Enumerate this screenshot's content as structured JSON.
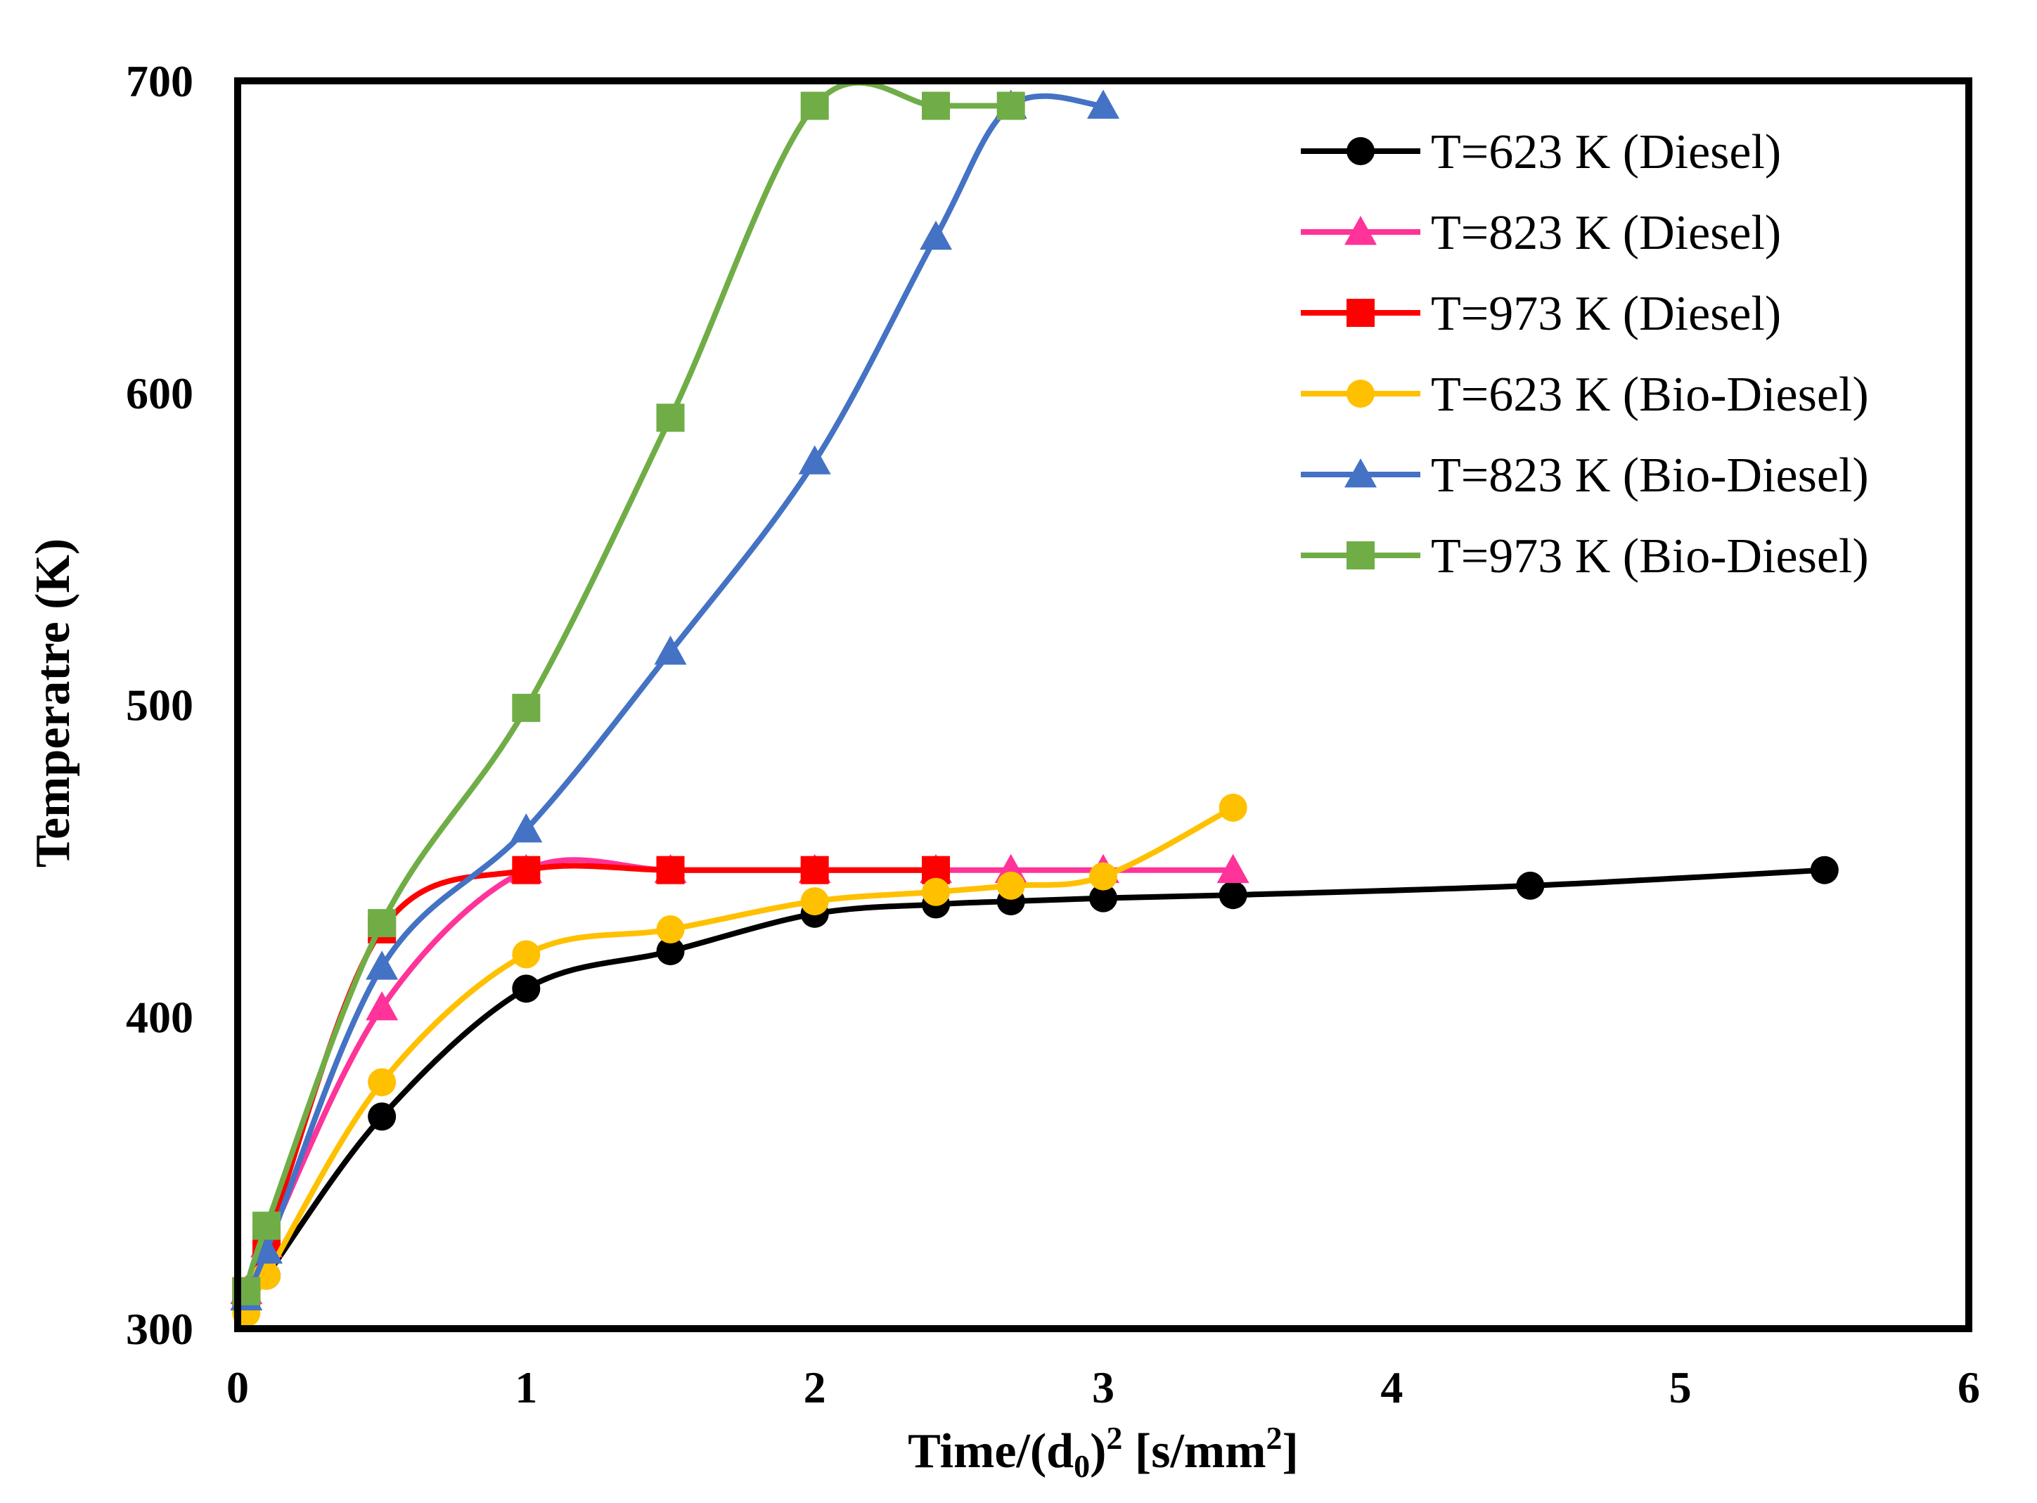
{
  "chart_data": {
    "type": "line",
    "title": "",
    "xlabel_parts": {
      "prefix": "Time/(d",
      "sub": "0",
      "mid": ")",
      "sup1": "2",
      "unit": " [s/mm",
      "sup2": "2",
      "end": "]"
    },
    "xlabel": "Time/(d0)2 [s/mm2]",
    "ylabel": "Temperatre (K)",
    "xlim": [
      0,
      6
    ],
    "ylim": [
      300,
      700
    ],
    "xticks": [
      "0",
      "1",
      "2",
      "3",
      "4",
      "5",
      "6"
    ],
    "yticks": [
      "300",
      "400",
      "500",
      "600",
      "700"
    ],
    "grid": false,
    "legend_position": "top-right",
    "series": [
      {
        "name": "T=623 K (Diesel)",
        "color": "#000000",
        "marker": "circle",
        "x": [
          0.03,
          0.1,
          0.5,
          1.0,
          1.5,
          2.0,
          2.42,
          2.68,
          3.0,
          3.45,
          4.48,
          5.5
        ],
        "y": [
          308,
          317,
          368,
          409,
          421,
          433,
          436,
          437,
          438,
          439,
          442,
          447
        ]
      },
      {
        "name": "T=823 K (Diesel)",
        "color": "#FF3399",
        "marker": "triangle",
        "x": [
          0.03,
          0.1,
          0.5,
          1.0,
          1.5,
          2.0,
          2.42,
          2.68,
          3.0,
          3.45
        ],
        "y": [
          312,
          327,
          403,
          447,
          447,
          447,
          447,
          447,
          447,
          447
        ]
      },
      {
        "name": "T=973 K (Diesel)",
        "color": "#FF0000",
        "marker": "square",
        "x": [
          0.03,
          0.1,
          0.5,
          1.0,
          1.5,
          2.0,
          2.42
        ],
        "y": [
          312,
          328,
          428,
          447,
          447,
          447,
          447
        ]
      },
      {
        "name": "T=623 K (Bio-Diesel)",
        "color": "#FFC000",
        "marker": "circle",
        "x": [
          0.03,
          0.1,
          0.5,
          1.0,
          1.5,
          2.0,
          2.42,
          2.68,
          3.0,
          3.45
        ],
        "y": [
          305,
          317,
          379,
          420,
          428,
          437,
          440,
          442,
          445,
          467
        ]
      },
      {
        "name": "T=823 K (Bio-Diesel)",
        "color": "#4472C4",
        "marker": "triangle",
        "x": [
          0.03,
          0.1,
          0.5,
          1.0,
          1.5,
          2.0,
          2.42,
          2.68,
          3.0
        ],
        "y": [
          310,
          325,
          416,
          460,
          517,
          578,
          650,
          692,
          692
        ]
      },
      {
        "name": "T=973 K (Bio-Diesel)",
        "color": "#70AD47",
        "marker": "square",
        "x": [
          0.03,
          0.1,
          0.5,
          1.0,
          1.5,
          2.0,
          2.42,
          2.68
        ],
        "y": [
          312,
          333,
          430,
          499,
          592,
          692,
          692,
          692
        ]
      }
    ]
  }
}
